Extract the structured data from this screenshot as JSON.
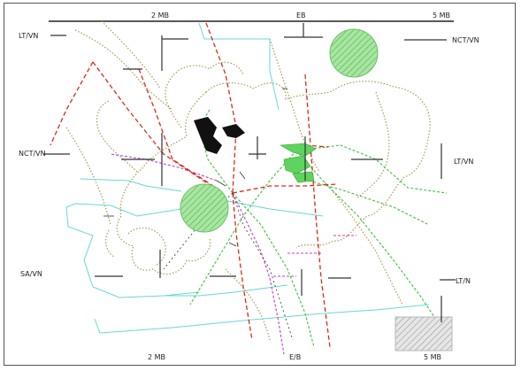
{
  "map": {
    "top_scale": {
      "labels": [
        "2 MB",
        "EB",
        "5 MB"
      ]
    },
    "left_labels": [
      "LT/VN",
      "NCT/VN",
      "SA/VN"
    ],
    "right_labels": [
      "NCT/VN",
      "LT/VN",
      "LT/N"
    ],
    "bottom_labels": [
      "2 MB",
      "E/B",
      "5 MB"
    ],
    "colors": {
      "coastline": "#a89a50",
      "route_red": "#d82a1a",
      "route_green": "#3fbf3f",
      "route_cyan": "#66d8d8",
      "route_magenta": "#c040c0",
      "fill_green": "#8fd98f",
      "fill_gray": "#cfcfcf",
      "axis": "#222222"
    }
  }
}
